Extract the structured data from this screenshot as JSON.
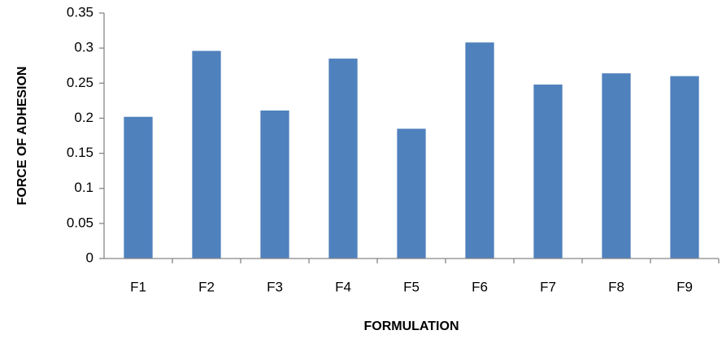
{
  "chart_data": {
    "type": "bar",
    "x_label": "FORMULATION",
    "y_label": "FORCE OF ADHESION",
    "categories": [
      "F1",
      "F2",
      "F3",
      "F4",
      "F5",
      "F6",
      "F7",
      "F8",
      "F9"
    ],
    "values": [
      0.202,
      0.296,
      0.211,
      0.285,
      0.185,
      0.308,
      0.248,
      0.264,
      0.26
    ],
    "color": "#4f81bd",
    "ylim": [
      0,
      0.35
    ],
    "yticks": [
      0,
      0.05,
      0.1,
      0.15,
      0.2,
      0.25,
      0.3,
      0.35
    ],
    "grid": false
  }
}
